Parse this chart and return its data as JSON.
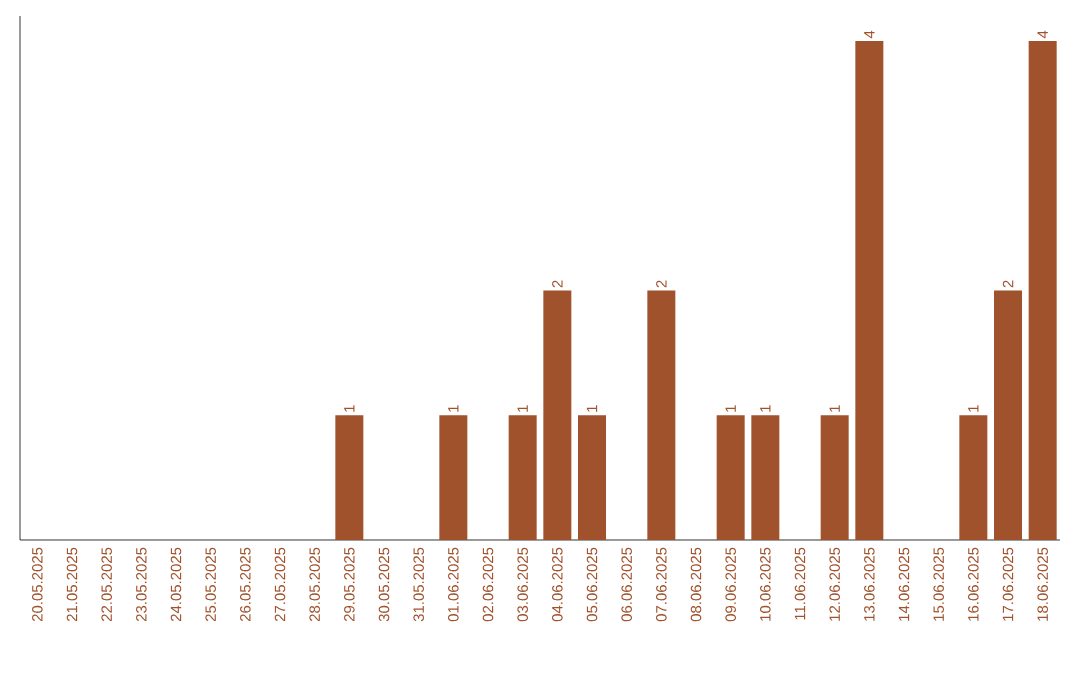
{
  "chart_data": {
    "type": "bar",
    "categories": [
      "20.05.2025",
      "21.05.2025",
      "22.05.2025",
      "23.05.2025",
      "24.05.2025",
      "25.05.2025",
      "26.05.2025",
      "27.05.2025",
      "28.05.2025",
      "29.05.2025",
      "30.05.2025",
      "31.05.2025",
      "01.06.2025",
      "02.06.2025",
      "03.06.2025",
      "04.06.2025",
      "05.06.2025",
      "06.06.2025",
      "07.06.2025",
      "08.06.2025",
      "09.06.2025",
      "10.06.2025",
      "11.06.2025",
      "12.06.2025",
      "13.06.2025",
      "14.06.2025",
      "15.06.2025",
      "16.06.2025",
      "17.06.2025",
      "18.06.2025"
    ],
    "values": [
      0,
      0,
      0,
      0,
      0,
      0,
      0,
      0,
      0,
      1,
      0,
      0,
      1,
      0,
      1,
      2,
      1,
      0,
      2,
      0,
      1,
      1,
      0,
      1,
      4,
      0,
      0,
      1,
      2,
      4
    ],
    "value_labels": [
      null,
      null,
      null,
      null,
      null,
      null,
      null,
      null,
      null,
      "1",
      null,
      null,
      "1",
      null,
      "1",
      "2",
      "1",
      null,
      "2",
      null,
      "1",
      "1",
      null,
      "1",
      "4",
      null,
      null,
      "1",
      "2",
      "4"
    ],
    "color": "#a0522d",
    "ylim": [
      0,
      4.2
    ],
    "tick_labels": "x"
  }
}
